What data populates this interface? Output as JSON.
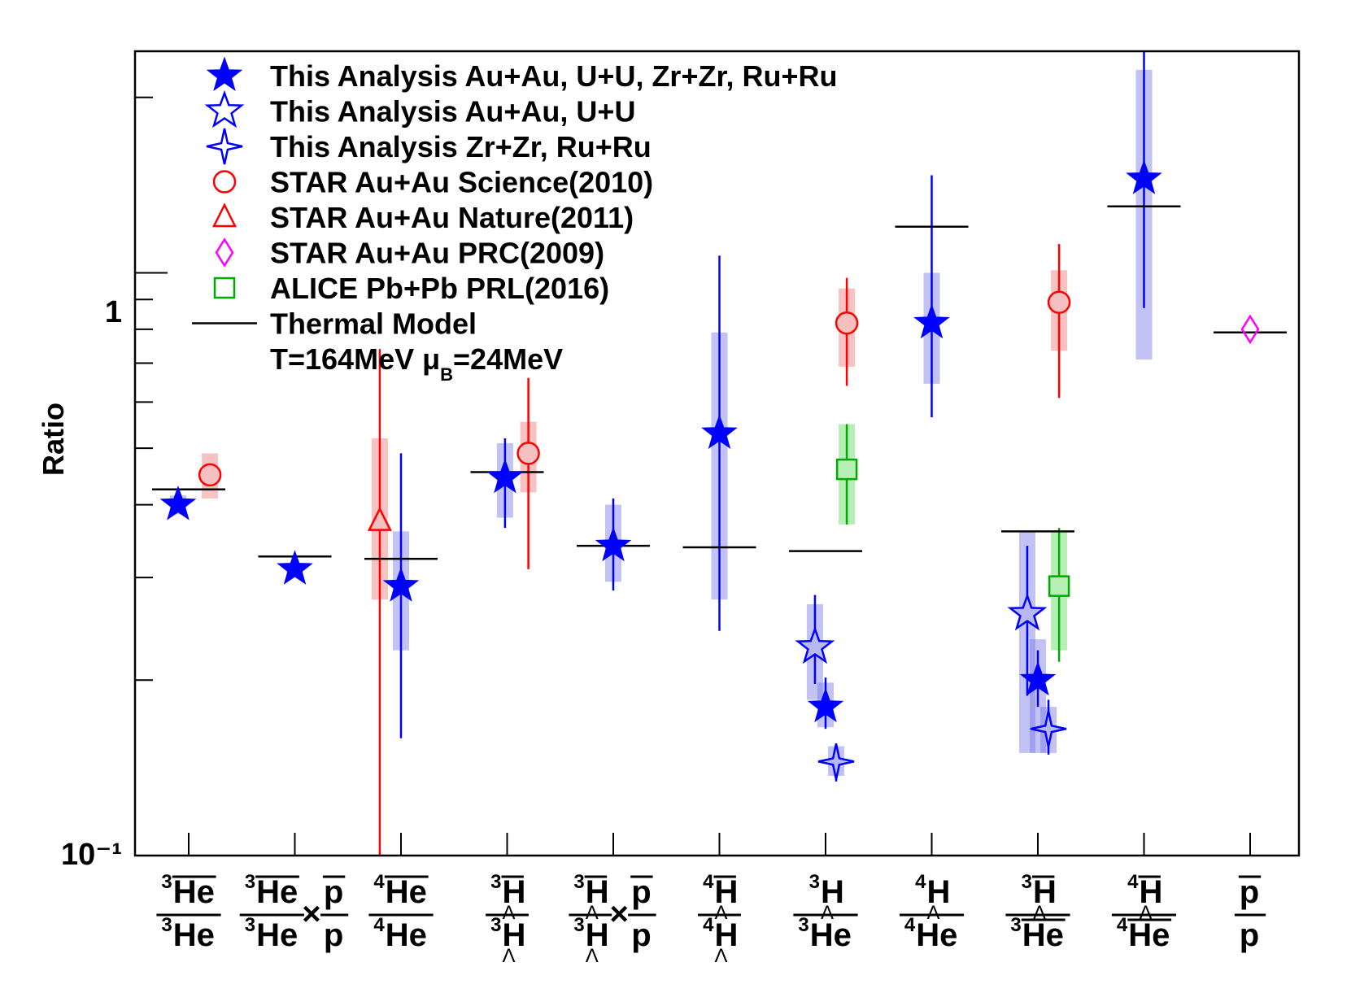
{
  "chart_data": {
    "type": "scatter",
    "yscale": "log",
    "ylim": [
      0.1,
      2.4
    ],
    "ylabel": "Ratio",
    "y_tick_labels": [
      {
        "value": 1,
        "label": "1"
      },
      {
        "value": 0.1,
        "label": "10⁻¹"
      }
    ],
    "legend_position": "top-left",
    "legend": [
      {
        "label": "This Analysis Au+Au, U+U, Zr+Zr, Ru+Ru",
        "marker": "star-filled",
        "color": "#0000ff"
      },
      {
        "label": "This Analysis Au+Au, U+U",
        "marker": "star-open",
        "color": "#0000ff"
      },
      {
        "label": "This Analysis Zr+Zr, Ru+Ru",
        "marker": "cross-star-open",
        "color": "#0000ff"
      },
      {
        "label": "STAR Au+Au Science(2010)",
        "marker": "circle-open",
        "color": "#ff0000"
      },
      {
        "label": "STAR Au+Au Nature(2011)",
        "marker": "triangle-open",
        "color": "#ff0000"
      },
      {
        "label": "STAR Au+Au PRC(2009)",
        "marker": "diamond-open",
        "color": "#ff00ff"
      },
      {
        "label": "ALICE Pb+Pb PRL(2016)",
        "marker": "square-open",
        "color": "#00aa00"
      },
      {
        "label": "Thermal Model",
        "marker": "line",
        "color": "#000000"
      },
      {
        "label": "T=164MeV  μ",
        "sub": "B",
        "after": "=24MeV",
        "marker": "none",
        "color": "#000000"
      }
    ],
    "categories": [
      {
        "num": [
          {
            "t": "3",
            "sup": true
          },
          {
            "t": "He",
            "bar": true
          }
        ],
        "den": [
          {
            "t": "3",
            "sup": true
          },
          {
            "t": "He"
          }
        ]
      },
      {
        "num": [
          {
            "t": "3",
            "sup": true
          },
          {
            "t": "He",
            "bar": true
          }
        ],
        "den": [
          {
            "t": "3",
            "sup": true
          },
          {
            "t": "He"
          }
        ],
        "times": {
          "num": [
            {
              "t": "p",
              "bar": true
            }
          ],
          "den": [
            {
              "t": "p"
            }
          ]
        }
      },
      {
        "num": [
          {
            "t": "4",
            "sup": true
          },
          {
            "t": "He",
            "bar": true
          }
        ],
        "den": [
          {
            "t": "4",
            "sup": true
          },
          {
            "t": "He"
          }
        ]
      },
      {
        "num": [
          {
            "t": "3",
            "sup": true
          },
          {
            "t": "Λ",
            "sub": true,
            "bar": true
          },
          {
            "t": "H",
            "bar": true
          }
        ],
        "den": [
          {
            "t": "3",
            "sup": true
          },
          {
            "t": "Λ",
            "sub": true
          },
          {
            "t": "H"
          }
        ]
      },
      {
        "num": [
          {
            "t": "3",
            "sup": true
          },
          {
            "t": "Λ",
            "sub": true,
            "bar": true
          },
          {
            "t": "H",
            "bar": true
          }
        ],
        "den": [
          {
            "t": "3",
            "sup": true
          },
          {
            "t": "Λ",
            "sub": true
          },
          {
            "t": "H"
          }
        ],
        "times": {
          "num": [
            {
              "t": "p",
              "bar": true
            }
          ],
          "den": [
            {
              "t": "p"
            }
          ]
        }
      },
      {
        "num": [
          {
            "t": "4",
            "sup": true
          },
          {
            "t": "Λ",
            "sub": true,
            "bar": true
          },
          {
            "t": "H",
            "bar": true
          }
        ],
        "den": [
          {
            "t": "4",
            "sup": true
          },
          {
            "t": "Λ",
            "sub": true
          },
          {
            "t": "H"
          }
        ]
      },
      {
        "num": [
          {
            "t": "3",
            "sup": true
          },
          {
            "t": "Λ",
            "sub": true
          },
          {
            "t": "H"
          }
        ],
        "den": [
          {
            "t": "3",
            "sup": true
          },
          {
            "t": "He"
          }
        ]
      },
      {
        "num": [
          {
            "t": "4",
            "sup": true
          },
          {
            "t": "Λ",
            "sub": true
          },
          {
            "t": "H"
          }
        ],
        "den": [
          {
            "t": "4",
            "sup": true
          },
          {
            "t": "He"
          }
        ]
      },
      {
        "num": [
          {
            "t": "3",
            "sup": true
          },
          {
            "t": "Λ",
            "sub": true,
            "bar": true
          },
          {
            "t": "H",
            "bar": true
          }
        ],
        "den": [
          {
            "t": "3",
            "sup": true
          },
          {
            "t": "He",
            "bar": true
          }
        ]
      },
      {
        "num": [
          {
            "t": "4",
            "sup": true
          },
          {
            "t": "Λ",
            "sub": true,
            "bar": true
          },
          {
            "t": "H",
            "bar": true
          }
        ],
        "den": [
          {
            "t": "4",
            "sup": true
          },
          {
            "t": "He",
            "bar": true
          }
        ]
      },
      {
        "num": [
          {
            "t": "p",
            "bar": true
          }
        ],
        "den": [
          {
            "t": "p"
          }
        ]
      }
    ],
    "thermal_model": [
      0.425,
      0.326,
      0.323,
      0.455,
      0.34,
      0.338,
      0.333,
      1.2,
      0.36,
      1.3,
      0.79
    ],
    "series": [
      {
        "name": "This Analysis Au+Au, U+U, Zr+Zr, Ru+Ru",
        "marker": "star-filled",
        "color": "#0000ff",
        "points": [
          {
            "cat": 0,
            "offset": -0.1,
            "y": 0.4,
            "sys": [
              0.385,
              0.415
            ]
          },
          {
            "cat": 1,
            "offset": 0,
            "y": 0.31,
            "err": [
              0.303,
              0.318
            ],
            "sys": [
              0.303,
              0.318
            ]
          },
          {
            "cat": 2,
            "offset": 0,
            "y": 0.29,
            "err": [
              0.159,
              0.49
            ],
            "sys": [
              0.225,
              0.36
            ]
          },
          {
            "cat": 3,
            "offset": -0.02,
            "y": 0.445,
            "err": [
              0.365,
              0.52
            ],
            "sys": [
              0.38,
              0.51
            ]
          },
          {
            "cat": 4,
            "offset": 0,
            "y": 0.34,
            "err": [
              0.285,
              0.41
            ],
            "sys": [
              0.295,
              0.4
            ]
          },
          {
            "cat": 5,
            "offset": 0,
            "y": 0.53,
            "err": [
              0.243,
              1.07
            ],
            "sys": [
              0.275,
              0.79
            ]
          },
          {
            "cat": 6,
            "offset": 0,
            "y": 0.18,
            "err": [
              0.165,
              0.202
            ],
            "sys": [
              0.166,
              0.198
            ]
          },
          {
            "cat": 7,
            "offset": 0,
            "y": 0.82,
            "err": [
              0.565,
              1.47
            ],
            "sys": [
              0.645,
              1.0
            ]
          },
          {
            "cat": 8,
            "offset": 0,
            "y": 0.2,
            "err": [
              0.18,
              0.225
            ],
            "sys": [
              0.15,
              0.235
            ]
          },
          {
            "cat": 9,
            "offset": 0,
            "y": 1.45,
            "err": [
              0.87,
              2.4
            ],
            "sys": [
              0.71,
              2.23
            ]
          }
        ]
      },
      {
        "name": "This Analysis Au+Au, U+U",
        "marker": "star-open",
        "color": "#0000ff",
        "points": [
          {
            "cat": 6,
            "offset": -0.1,
            "y": 0.228,
            "err": [
              0.197,
              0.28
            ],
            "sys": [
              0.185,
              0.27
            ]
          },
          {
            "cat": 8,
            "offset": -0.1,
            "y": 0.26,
            "err": [
              0.188,
              0.34
            ],
            "sys": [
              0.15,
              0.36
            ]
          }
        ]
      },
      {
        "name": "This Analysis Zr+Zr, Ru+Ru",
        "marker": "cross-star-open",
        "color": "#0000ff",
        "points": [
          {
            "cat": 6,
            "offset": 0.1,
            "y": 0.145,
            "err": [
              0.134,
              0.154
            ],
            "sys": [
              0.137,
              0.154
            ]
          },
          {
            "cat": 8,
            "offset": 0.1,
            "y": 0.165,
            "err": [
              0.149,
              0.185
            ],
            "sys": [
              0.15,
              0.18
            ]
          }
        ]
      },
      {
        "name": "STAR Au+Au Science(2010)",
        "marker": "circle-open",
        "color": "#ff0000",
        "points": [
          {
            "cat": 0,
            "offset": 0.2,
            "y": 0.45,
            "sys": [
              0.41,
              0.49
            ]
          },
          {
            "cat": 3,
            "offset": 0.2,
            "y": 0.49,
            "err": [
              0.31,
              0.66
            ],
            "sys": [
              0.42,
              0.555
            ]
          },
          {
            "cat": 6,
            "offset": 0.2,
            "y": 0.82,
            "err": [
              0.64,
              0.98
            ],
            "sys": [
              0.69,
              0.94
            ]
          },
          {
            "cat": 8,
            "offset": 0.2,
            "y": 0.89,
            "err": [
              0.61,
              1.12
            ],
            "sys": [
              0.735,
              1.01
            ]
          }
        ]
      },
      {
        "name": "STAR Au+Au Nature(2011)",
        "marker": "triangle-open",
        "color": "#ff0000",
        "points": [
          {
            "cat": 2,
            "offset": -0.2,
            "y": 0.375,
            "err": [
              0.1,
              0.74
            ],
            "sys": [
              0.275,
              0.52
            ]
          }
        ]
      },
      {
        "name": "STAR Au+Au PRC(2009)",
        "marker": "diamond-open",
        "color": "#ff00ff",
        "points": [
          {
            "cat": 10,
            "offset": 0,
            "y": 0.8
          }
        ]
      },
      {
        "name": "ALICE Pb+Pb PRL(2016)",
        "marker": "square-open",
        "color": "#00aa00",
        "points": [
          {
            "cat": 6,
            "offset": 0.2,
            "y": 0.46,
            "err": [
              0.37,
              0.55
            ],
            "sys": [
              0.37,
              0.55
            ]
          },
          {
            "cat": 8,
            "offset": 0.2,
            "y": 0.29,
            "err": [
              0.215,
              0.365
            ],
            "sys": [
              0.225,
              0.36
            ]
          }
        ]
      }
    ]
  }
}
